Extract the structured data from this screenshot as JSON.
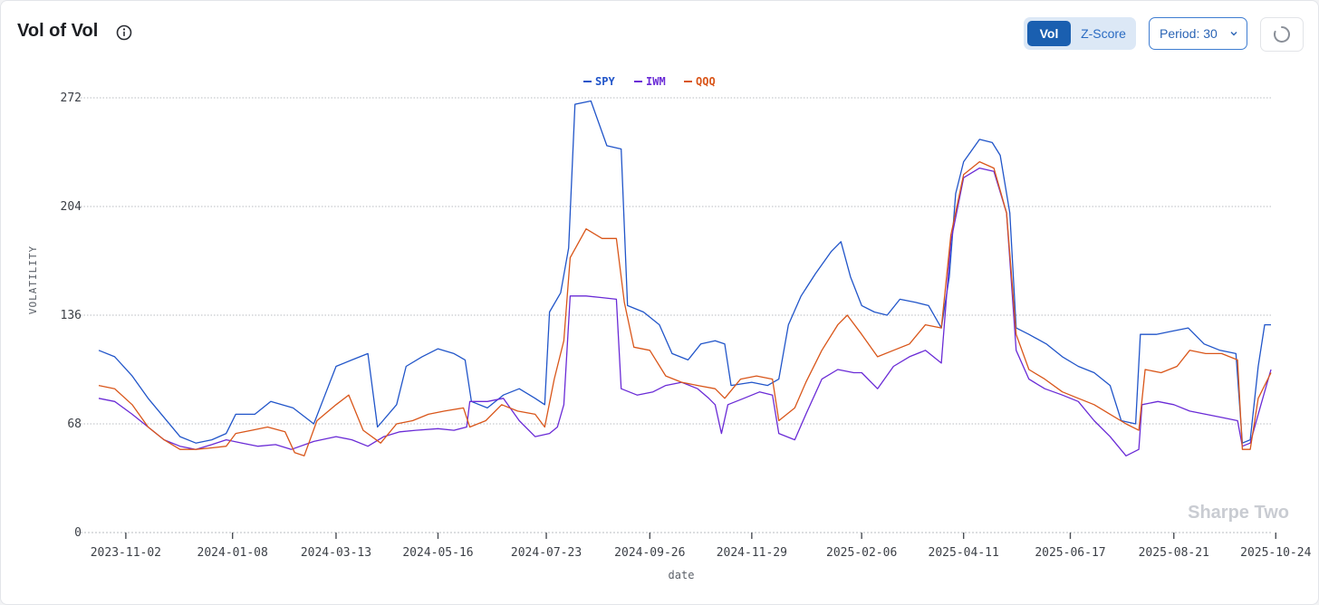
{
  "header": {
    "title": "Vol of Vol",
    "info_icon": "info-circle-icon",
    "toggle": {
      "options": [
        "Vol",
        "Z-Score"
      ],
      "selected": "Vol"
    },
    "period_label": "Period: 30",
    "refresh_icon": "loading-spinner-icon"
  },
  "watermark": "Sharpe Two",
  "colors": {
    "SPY": "#2155c9",
    "IWM": "#6a2bd6",
    "QQQ": "#d9561a",
    "accent": "#1a5fb0"
  },
  "chart_data": {
    "type": "line",
    "xlabel": "date",
    "ylabel": "VOLATILITY",
    "ylim": [
      0,
      272
    ],
    "yticks": [
      0,
      68,
      136,
      204,
      272
    ],
    "xticks": [
      "2023-11-02",
      "2024-01-08",
      "2024-03-13",
      "2024-05-16",
      "2024-07-23",
      "2024-09-26",
      "2024-11-29",
      "2025-02-06",
      "2025-04-11",
      "2025-06-17",
      "2025-08-21",
      "2025-10-24"
    ],
    "xrange": [
      "2023-10-16",
      "2025-10-21"
    ],
    "grid": true,
    "legend": "top-center",
    "series": [
      {
        "name": "SPY",
        "color": "#2155c9",
        "points": [
          [
            "2023-10-16",
            114
          ],
          [
            "2023-10-26",
            110
          ],
          [
            "2023-11-06",
            98
          ],
          [
            "2023-11-16",
            84
          ],
          [
            "2023-11-26",
            72
          ],
          [
            "2023-12-06",
            60
          ],
          [
            "2023-12-16",
            56
          ],
          [
            "2023-12-26",
            58
          ],
          [
            "2024-01-04",
            62
          ],
          [
            "2024-01-10",
            74
          ],
          [
            "2024-01-22",
            74
          ],
          [
            "2024-02-01",
            82
          ],
          [
            "2024-02-15",
            78
          ],
          [
            "2024-02-28",
            68
          ],
          [
            "2024-03-06",
            86
          ],
          [
            "2024-03-13",
            104
          ],
          [
            "2024-03-23",
            108
          ],
          [
            "2024-04-02",
            112
          ],
          [
            "2024-04-08",
            66
          ],
          [
            "2024-04-20",
            80
          ],
          [
            "2024-04-26",
            104
          ],
          [
            "2024-05-06",
            110
          ],
          [
            "2024-05-16",
            115
          ],
          [
            "2024-05-26",
            112
          ],
          [
            "2024-06-02",
            108
          ],
          [
            "2024-06-06",
            82
          ],
          [
            "2024-06-16",
            78
          ],
          [
            "2024-06-26",
            86
          ],
          [
            "2024-07-06",
            90
          ],
          [
            "2024-07-16",
            84
          ],
          [
            "2024-07-22",
            80
          ],
          [
            "2024-07-25",
            138
          ],
          [
            "2024-08-01",
            150
          ],
          [
            "2024-08-06",
            178
          ],
          [
            "2024-08-10",
            268
          ],
          [
            "2024-08-20",
            270
          ],
          [
            "2024-08-30",
            242
          ],
          [
            "2024-09-08",
            240
          ],
          [
            "2024-09-12",
            142
          ],
          [
            "2024-09-22",
            138
          ],
          [
            "2024-10-02",
            130
          ],
          [
            "2024-10-10",
            112
          ],
          [
            "2024-10-20",
            108
          ],
          [
            "2024-10-28",
            118
          ],
          [
            "2024-11-06",
            120
          ],
          [
            "2024-11-12",
            118
          ],
          [
            "2024-11-16",
            92
          ],
          [
            "2024-11-29",
            94
          ],
          [
            "2024-12-09",
            92
          ],
          [
            "2024-12-16",
            96
          ],
          [
            "2024-12-22",
            130
          ],
          [
            "2024-12-30",
            148
          ],
          [
            "2025-01-08",
            162
          ],
          [
            "2025-01-18",
            176
          ],
          [
            "2025-01-24",
            182
          ],
          [
            "2025-01-30",
            160
          ],
          [
            "2025-02-06",
            142
          ],
          [
            "2025-02-14",
            138
          ],
          [
            "2025-02-22",
            136
          ],
          [
            "2025-03-02",
            146
          ],
          [
            "2025-03-12",
            144
          ],
          [
            "2025-03-20",
            142
          ],
          [
            "2025-03-28",
            128
          ],
          [
            "2025-04-02",
            160
          ],
          [
            "2025-04-06",
            212
          ],
          [
            "2025-04-11",
            232
          ],
          [
            "2025-04-21",
            246
          ],
          [
            "2025-04-29",
            244
          ],
          [
            "2025-05-04",
            236
          ],
          [
            "2025-05-10",
            200
          ],
          [
            "2025-05-14",
            128
          ],
          [
            "2025-05-22",
            124
          ],
          [
            "2025-06-02",
            118
          ],
          [
            "2025-06-12",
            110
          ],
          [
            "2025-06-22",
            104
          ],
          [
            "2025-07-02",
            100
          ],
          [
            "2025-07-12",
            92
          ],
          [
            "2025-07-19",
            70
          ],
          [
            "2025-07-28",
            68
          ],
          [
            "2025-07-31",
            124
          ],
          [
            "2025-08-10",
            124
          ],
          [
            "2025-08-20",
            126
          ],
          [
            "2025-08-30",
            128
          ],
          [
            "2025-09-09",
            118
          ],
          [
            "2025-09-19",
            114
          ],
          [
            "2025-09-29",
            112
          ],
          [
            "2025-10-03",
            56
          ],
          [
            "2025-10-08",
            58
          ],
          [
            "2025-10-13",
            104
          ],
          [
            "2025-10-17",
            130
          ],
          [
            "2025-10-21",
            130
          ]
        ]
      },
      {
        "name": "IWM",
        "color": "#6a2bd6",
        "points": [
          [
            "2023-10-16",
            84
          ],
          [
            "2023-10-26",
            82
          ],
          [
            "2023-11-06",
            74
          ],
          [
            "2023-11-16",
            66
          ],
          [
            "2023-11-26",
            58
          ],
          [
            "2023-12-06",
            54
          ],
          [
            "2023-12-16",
            52
          ],
          [
            "2023-12-26",
            55
          ],
          [
            "2024-01-04",
            58
          ],
          [
            "2024-01-14",
            56
          ],
          [
            "2024-01-24",
            54
          ],
          [
            "2024-02-04",
            55
          ],
          [
            "2024-02-14",
            52
          ],
          [
            "2024-02-28",
            57
          ],
          [
            "2024-03-13",
            60
          ],
          [
            "2024-03-23",
            58
          ],
          [
            "2024-04-02",
            54
          ],
          [
            "2024-04-12",
            60
          ],
          [
            "2024-04-22",
            63
          ],
          [
            "2024-05-02",
            64
          ],
          [
            "2024-05-16",
            65
          ],
          [
            "2024-05-26",
            64
          ],
          [
            "2024-06-03",
            66
          ],
          [
            "2024-06-05",
            82
          ],
          [
            "2024-06-16",
            82
          ],
          [
            "2024-06-26",
            84
          ],
          [
            "2024-07-06",
            70
          ],
          [
            "2024-07-16",
            60
          ],
          [
            "2024-07-25",
            62
          ],
          [
            "2024-07-30",
            66
          ],
          [
            "2024-08-03",
            80
          ],
          [
            "2024-08-07",
            148
          ],
          [
            "2024-08-17",
            148
          ],
          [
            "2024-08-27",
            147
          ],
          [
            "2024-09-05",
            146
          ],
          [
            "2024-09-08",
            90
          ],
          [
            "2024-09-18",
            86
          ],
          [
            "2024-09-28",
            88
          ],
          [
            "2024-10-06",
            92
          ],
          [
            "2024-10-16",
            94
          ],
          [
            "2024-10-26",
            90
          ],
          [
            "2024-11-02",
            84
          ],
          [
            "2024-11-06",
            80
          ],
          [
            "2024-11-10",
            62
          ],
          [
            "2024-11-14",
            80
          ],
          [
            "2024-11-24",
            84
          ],
          [
            "2024-12-04",
            88
          ],
          [
            "2024-12-12",
            86
          ],
          [
            "2024-12-16",
            62
          ],
          [
            "2024-12-26",
            58
          ],
          [
            "2025-01-02",
            74
          ],
          [
            "2025-01-12",
            96
          ],
          [
            "2025-01-22",
            102
          ],
          [
            "2025-02-01",
            100
          ],
          [
            "2025-02-06",
            100
          ],
          [
            "2025-02-16",
            90
          ],
          [
            "2025-02-26",
            104
          ],
          [
            "2025-03-08",
            110
          ],
          [
            "2025-03-18",
            114
          ],
          [
            "2025-03-28",
            106
          ],
          [
            "2025-04-03",
            182
          ],
          [
            "2025-04-11",
            222
          ],
          [
            "2025-04-21",
            228
          ],
          [
            "2025-04-30",
            226
          ],
          [
            "2025-05-08",
            200
          ],
          [
            "2025-05-14",
            114
          ],
          [
            "2025-05-22",
            96
          ],
          [
            "2025-06-01",
            90
          ],
          [
            "2025-06-12",
            86
          ],
          [
            "2025-06-22",
            82
          ],
          [
            "2025-07-02",
            70
          ],
          [
            "2025-07-12",
            60
          ],
          [
            "2025-07-22",
            48
          ],
          [
            "2025-07-30",
            52
          ],
          [
            "2025-08-01",
            80
          ],
          [
            "2025-08-11",
            82
          ],
          [
            "2025-08-21",
            80
          ],
          [
            "2025-08-31",
            76
          ],
          [
            "2025-09-10",
            74
          ],
          [
            "2025-09-20",
            72
          ],
          [
            "2025-09-30",
            70
          ],
          [
            "2025-10-03",
            54
          ],
          [
            "2025-10-08",
            56
          ],
          [
            "2025-10-13",
            74
          ],
          [
            "2025-10-21",
            102
          ]
        ]
      },
      {
        "name": "QQQ",
        "color": "#d9561a",
        "points": [
          [
            "2023-10-16",
            92
          ],
          [
            "2023-10-26",
            90
          ],
          [
            "2023-11-06",
            80
          ],
          [
            "2023-11-16",
            66
          ],
          [
            "2023-11-26",
            58
          ],
          [
            "2023-12-06",
            52
          ],
          [
            "2023-12-16",
            52
          ],
          [
            "2023-12-26",
            53
          ],
          [
            "2024-01-04",
            54
          ],
          [
            "2024-01-10",
            62
          ],
          [
            "2024-01-20",
            64
          ],
          [
            "2024-01-30",
            66
          ],
          [
            "2024-02-10",
            63
          ],
          [
            "2024-02-16",
            50
          ],
          [
            "2024-02-22",
            48
          ],
          [
            "2024-03-01",
            70
          ],
          [
            "2024-03-13",
            80
          ],
          [
            "2024-03-21",
            86
          ],
          [
            "2024-03-30",
            64
          ],
          [
            "2024-04-10",
            56
          ],
          [
            "2024-04-20",
            68
          ],
          [
            "2024-04-30",
            70
          ],
          [
            "2024-05-10",
            74
          ],
          [
            "2024-05-20",
            76
          ],
          [
            "2024-06-01",
            78
          ],
          [
            "2024-06-05",
            66
          ],
          [
            "2024-06-15",
            70
          ],
          [
            "2024-06-25",
            80
          ],
          [
            "2024-07-05",
            76
          ],
          [
            "2024-07-16",
            74
          ],
          [
            "2024-07-22",
            66
          ],
          [
            "2024-07-28",
            96
          ],
          [
            "2024-08-03",
            120
          ],
          [
            "2024-08-07",
            172
          ],
          [
            "2024-08-17",
            190
          ],
          [
            "2024-08-27",
            184
          ],
          [
            "2024-09-05",
            184
          ],
          [
            "2024-09-10",
            144
          ],
          [
            "2024-09-16",
            116
          ],
          [
            "2024-09-26",
            114
          ],
          [
            "2024-10-06",
            98
          ],
          [
            "2024-10-16",
            94
          ],
          [
            "2024-10-26",
            92
          ],
          [
            "2024-11-06",
            90
          ],
          [
            "2024-11-12",
            84
          ],
          [
            "2024-11-22",
            96
          ],
          [
            "2024-12-02",
            98
          ],
          [
            "2024-12-12",
            96
          ],
          [
            "2024-12-16",
            70
          ],
          [
            "2024-12-26",
            78
          ],
          [
            "2025-01-02",
            94
          ],
          [
            "2025-01-12",
            114
          ],
          [
            "2025-01-22",
            130
          ],
          [
            "2025-01-28",
            136
          ],
          [
            "2025-02-06",
            124
          ],
          [
            "2025-02-16",
            110
          ],
          [
            "2025-02-26",
            114
          ],
          [
            "2025-03-08",
            118
          ],
          [
            "2025-03-18",
            130
          ],
          [
            "2025-03-28",
            128
          ],
          [
            "2025-04-03",
            186
          ],
          [
            "2025-04-11",
            224
          ],
          [
            "2025-04-21",
            232
          ],
          [
            "2025-04-30",
            228
          ],
          [
            "2025-05-08",
            200
          ],
          [
            "2025-05-14",
            124
          ],
          [
            "2025-05-22",
            102
          ],
          [
            "2025-06-01",
            96
          ],
          [
            "2025-06-12",
            88
          ],
          [
            "2025-06-22",
            84
          ],
          [
            "2025-07-02",
            80
          ],
          [
            "2025-07-12",
            74
          ],
          [
            "2025-07-22",
            68
          ],
          [
            "2025-07-30",
            64
          ],
          [
            "2025-08-03",
            102
          ],
          [
            "2025-08-13",
            100
          ],
          [
            "2025-08-23",
            104
          ],
          [
            "2025-08-31",
            114
          ],
          [
            "2025-09-10",
            112
          ],
          [
            "2025-09-20",
            112
          ],
          [
            "2025-09-30",
            108
          ],
          [
            "2025-10-03",
            52
          ],
          [
            "2025-10-08",
            52
          ],
          [
            "2025-10-13",
            84
          ],
          [
            "2025-10-21",
            100
          ]
        ]
      }
    ]
  }
}
